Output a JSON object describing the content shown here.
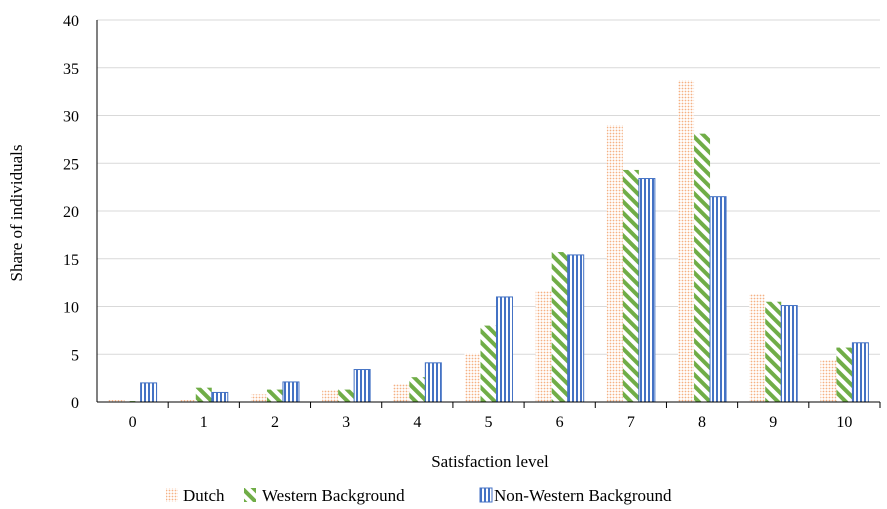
{
  "chart_data": {
    "type": "bar",
    "xlabel": "Satisfaction level",
    "ylabel": "Share of individuals",
    "categories": [
      "0",
      "1",
      "2",
      "3",
      "4",
      "5",
      "6",
      "7",
      "8",
      "9",
      "10"
    ],
    "ylim": [
      0,
      40
    ],
    "yticks": [
      0,
      5,
      10,
      15,
      20,
      25,
      30,
      35,
      40
    ],
    "grid": true,
    "legend_position": "bottom",
    "series": [
      {
        "name": "Dutch",
        "pattern": "dots",
        "color": "#f4b183",
        "values": [
          0.2,
          0.2,
          0.8,
          1.2,
          1.9,
          5.1,
          11.6,
          29.0,
          33.7,
          11.3,
          4.4
        ]
      },
      {
        "name": "Western Background",
        "pattern": "diagonal-stripes",
        "color": "#70ad47",
        "values": [
          0.1,
          1.5,
          1.3,
          1.3,
          2.6,
          8.0,
          15.7,
          24.3,
          28.1,
          10.5,
          5.7
        ]
      },
      {
        "name": "Non-Western Background",
        "pattern": "vertical-stripes",
        "color": "#4472c4",
        "values": [
          2.0,
          1.0,
          2.1,
          3.4,
          4.1,
          11.0,
          15.4,
          23.4,
          21.5,
          10.1,
          6.2
        ]
      }
    ]
  }
}
